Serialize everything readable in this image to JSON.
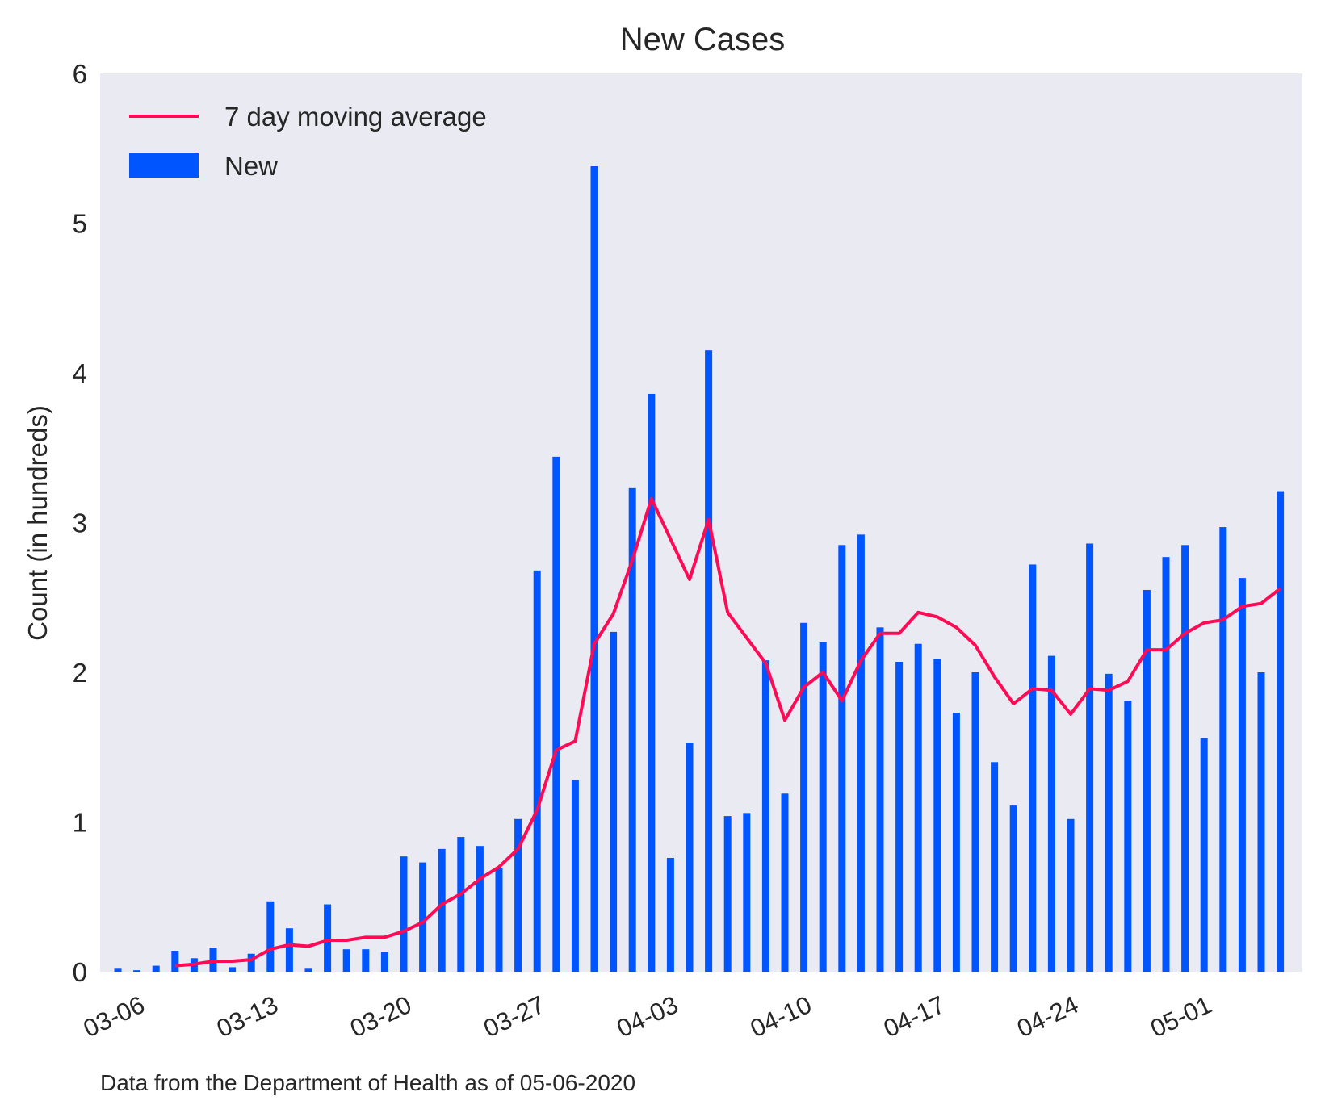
{
  "chart_data": {
    "type": "bar",
    "title": "New Cases",
    "ylabel": "Count (in hundreds)",
    "xlabel": "",
    "ylim": [
      0,
      6
    ],
    "yticks": [
      "0",
      "1",
      "2",
      "3",
      "4",
      "5",
      "6"
    ],
    "xticks": [
      {
        "date": "2020-03-06",
        "label": "03-06"
      },
      {
        "date": "2020-03-13",
        "label": "03-13"
      },
      {
        "date": "2020-03-20",
        "label": "03-20"
      },
      {
        "date": "2020-03-27",
        "label": "03-27"
      },
      {
        "date": "2020-04-03",
        "label": "04-03"
      },
      {
        "date": "2020-04-10",
        "label": "04-10"
      },
      {
        "date": "2020-04-17",
        "label": "04-17"
      },
      {
        "date": "2020-04-24",
        "label": "04-24"
      },
      {
        "date": "2020-05-01",
        "label": "05-01"
      }
    ],
    "grid": false,
    "legend_position": "top-left",
    "background": "#eaeaf2",
    "series": [
      {
        "name": "New",
        "type": "bar",
        "color": "#0055ff",
        "x": [
          "2020-03-06",
          "2020-03-07",
          "2020-03-08",
          "2020-03-09",
          "2020-03-10",
          "2020-03-11",
          "2020-03-12",
          "2020-03-13",
          "2020-03-14",
          "2020-03-15",
          "2020-03-16",
          "2020-03-17",
          "2020-03-18",
          "2020-03-19",
          "2020-03-20",
          "2020-03-21",
          "2020-03-22",
          "2020-03-23",
          "2020-03-24",
          "2020-03-25",
          "2020-03-26",
          "2020-03-27",
          "2020-03-28",
          "2020-03-29",
          "2020-03-30",
          "2020-03-31",
          "2020-04-01",
          "2020-04-02",
          "2020-04-03",
          "2020-04-04",
          "2020-04-05",
          "2020-04-06",
          "2020-04-07",
          "2020-04-08",
          "2020-04-09",
          "2020-04-10",
          "2020-04-11",
          "2020-04-12",
          "2020-04-13",
          "2020-04-14",
          "2020-04-15",
          "2020-04-16",
          "2020-04-17",
          "2020-04-18",
          "2020-04-19",
          "2020-04-20",
          "2020-04-21",
          "2020-04-22",
          "2020-04-23",
          "2020-04-24",
          "2020-04-25",
          "2020-04-26",
          "2020-04-27",
          "2020-04-28",
          "2020-04-29",
          "2020-04-30",
          "2020-05-01",
          "2020-05-02",
          "2020-05-03",
          "2020-05-04",
          "2020-05-05",
          "2020-05-06"
        ],
        "values": [
          0.02,
          0.01,
          0.04,
          0.14,
          0.09,
          0.16,
          0.03,
          0.12,
          0.47,
          0.29,
          0.02,
          0.45,
          0.15,
          0.15,
          0.13,
          0.77,
          0.73,
          0.82,
          0.9,
          0.84,
          0.69,
          1.02,
          2.68,
          3.44,
          1.28,
          5.38,
          2.27,
          3.23,
          3.86,
          0.76,
          1.53,
          4.15,
          1.04,
          1.06,
          2.08,
          1.19,
          2.33,
          2.2,
          2.85,
          2.92,
          2.3,
          2.07,
          2.19,
          2.09,
          1.73,
          2.0,
          1.4,
          1.11,
          2.72,
          2.11,
          1.02,
          2.86,
          1.99,
          1.81,
          2.55,
          2.77,
          2.85,
          1.56,
          2.97,
          2.63,
          2.0,
          3.21
        ]
      },
      {
        "name": "7 day moving average",
        "type": "line",
        "color": "#ff0a54",
        "x": [
          "2020-03-09",
          "2020-03-10",
          "2020-03-11",
          "2020-03-12",
          "2020-03-13",
          "2020-03-14",
          "2020-03-15",
          "2020-03-16",
          "2020-03-17",
          "2020-03-18",
          "2020-03-19",
          "2020-03-20",
          "2020-03-21",
          "2020-03-22",
          "2020-03-23",
          "2020-03-24",
          "2020-03-25",
          "2020-03-26",
          "2020-03-27",
          "2020-03-28",
          "2020-03-29",
          "2020-03-30",
          "2020-03-31",
          "2020-04-01",
          "2020-04-02",
          "2020-04-03",
          "2020-04-04",
          "2020-04-05",
          "2020-04-06",
          "2020-04-07",
          "2020-04-08",
          "2020-04-09",
          "2020-04-10",
          "2020-04-11",
          "2020-04-12",
          "2020-04-13",
          "2020-04-14",
          "2020-04-15",
          "2020-04-16",
          "2020-04-17",
          "2020-04-18",
          "2020-04-19",
          "2020-04-20",
          "2020-04-21",
          "2020-04-22",
          "2020-04-23",
          "2020-04-24",
          "2020-04-25",
          "2020-04-26",
          "2020-04-27",
          "2020-04-28",
          "2020-04-29",
          "2020-04-30",
          "2020-05-01",
          "2020-05-02",
          "2020-05-03",
          "2020-05-04",
          "2020-05-05",
          "2020-05-06"
        ],
        "values": [
          0.04,
          0.05,
          0.07,
          0.07,
          0.08,
          0.15,
          0.18,
          0.17,
          0.21,
          0.21,
          0.23,
          0.23,
          0.27,
          0.33,
          0.45,
          0.52,
          0.62,
          0.7,
          0.82,
          1.08,
          1.48,
          1.54,
          2.19,
          2.39,
          2.75,
          3.16,
          2.89,
          2.62,
          3.02,
          2.4,
          2.23,
          2.06,
          1.68,
          1.9,
          2.0,
          1.81,
          2.08,
          2.26,
          2.26,
          2.4,
          2.37,
          2.3,
          2.18,
          1.97,
          1.79,
          1.89,
          1.88,
          1.72,
          1.89,
          1.88,
          1.94,
          2.15,
          2.15,
          2.26,
          2.33,
          2.35,
          2.44,
          2.46,
          2.56
        ]
      }
    ],
    "legend": [
      {
        "label": "7 day moving average",
        "kind": "line",
        "color": "#ff0a54"
      },
      {
        "label": "New",
        "kind": "patch",
        "color": "#0055ff"
      }
    ],
    "annotation": "Data from the Department of Health as of 05-06-2020"
  }
}
